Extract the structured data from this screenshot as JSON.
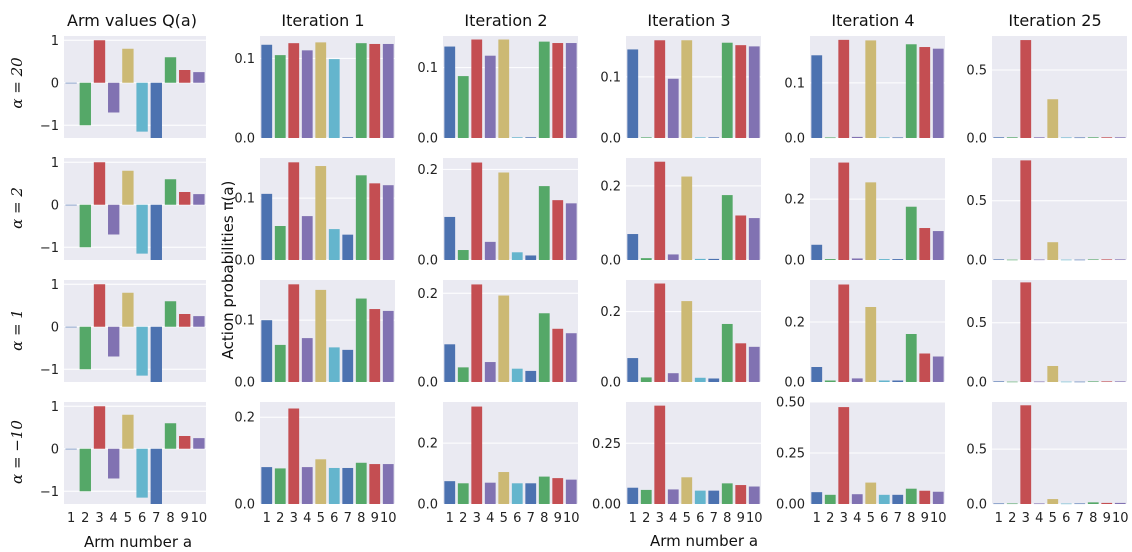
{
  "figure": {
    "col_titles": [
      "Arm values Q(a)",
      "Iteration 1",
      "Iteration 2",
      "Iteration 3",
      "Iteration 4",
      "Iteration 25"
    ],
    "row_labels": [
      "α = 20",
      "α = 2",
      "α = 1",
      "α = −10"
    ],
    "ylabel_probs": "Action probabilities π(a)",
    "xlabel_arm": "Arm number a",
    "arm_tick_labels": [
      "1",
      "2",
      "3",
      "4",
      "5",
      "6",
      "7",
      "8",
      "9",
      "10"
    ],
    "bar_colors": [
      "#4c72b0",
      "#55a868",
      "#c44e52",
      "#8172b2",
      "#ccb974",
      "#64b5cd",
      "#4c72b0",
      "#55a868",
      "#c44e52",
      "#8172b2"
    ]
  },
  "chart_data": [
    {
      "type": "bar",
      "title": "Arm values Q(a)",
      "row": "α = 20",
      "ylim": [
        -1.3,
        1.1
      ],
      "ticks": [
        -1,
        0,
        1
      ],
      "tick_labels": [
        "−1",
        "0",
        "1"
      ],
      "values": [
        0,
        -1.0,
        1.0,
        -0.7,
        0.8,
        -1.15,
        -1.3,
        0.6,
        0.3,
        0.25
      ]
    },
    {
      "type": "bar",
      "title": "Iteration 1",
      "row": "α = 20",
      "ylim": [
        0,
        0.128
      ],
      "ticks": [
        0,
        0.1
      ],
      "tick_labels": [
        "0.0",
        "0.1"
      ],
      "values": [
        0.117,
        0.104,
        0.119,
        0.11,
        0.12,
        0.099,
        0.001,
        0.119,
        0.118,
        0.118
      ]
    },
    {
      "type": "bar",
      "title": "Iteration 2",
      "row": "α = 20",
      "ylim": [
        0,
        0.145
      ],
      "ticks": [
        0,
        0.1
      ],
      "tick_labels": [
        "0.0",
        "0.1"
      ],
      "values": [
        0.13,
        0.088,
        0.14,
        0.117,
        0.14,
        0.001,
        0.001,
        0.137,
        0.135,
        0.135
      ]
    },
    {
      "type": "bar",
      "title": "Iteration 3",
      "row": "α = 20",
      "ylim": [
        0,
        0.167
      ],
      "ticks": [
        0,
        0.1
      ],
      "tick_labels": [
        "0.0",
        "0.1"
      ],
      "values": [
        0.145,
        0.001,
        0.16,
        0.097,
        0.16,
        0.001,
        0.001,
        0.156,
        0.152,
        0.15
      ]
    },
    {
      "type": "bar",
      "title": "Iteration 4",
      "row": "α = 20",
      "ylim": [
        0,
        0.185
      ],
      "ticks": [
        0,
        0.1
      ],
      "tick_labels": [
        "0.0",
        "0.1"
      ],
      "values": [
        0.15,
        0.001,
        0.178,
        0.002,
        0.177,
        0.001,
        0.001,
        0.17,
        0.165,
        0.162
      ]
    },
    {
      "type": "bar",
      "title": "Iteration 25",
      "row": "α = 20",
      "ylim": [
        0,
        0.75
      ],
      "ticks": [
        0,
        0.5
      ],
      "tick_labels": [
        "0.0",
        "0.5"
      ],
      "values": [
        0.005,
        0.005,
        0.72,
        0.005,
        0.285,
        0.004,
        0.004,
        0.005,
        0.005,
        0.005
      ]
    },
    {
      "type": "bar",
      "title": "Arm values Q(a)",
      "row": "α = 2",
      "ylim": [
        -1.3,
        1.1
      ],
      "ticks": [
        -1,
        0,
        1
      ],
      "tick_labels": [
        "−1",
        "0",
        "1"
      ],
      "values": [
        0,
        -1.0,
        1.0,
        -0.7,
        0.8,
        -1.15,
        -1.3,
        0.6,
        0.3,
        0.25
      ]
    },
    {
      "type": "bar",
      "title": "Iteration 1",
      "row": "α = 2",
      "ylim": [
        0,
        0.165
      ],
      "ticks": [
        0,
        0.1
      ],
      "tick_labels": [
        "0.0",
        "0.1"
      ],
      "values": [
        0.107,
        0.055,
        0.158,
        0.071,
        0.152,
        0.05,
        0.041,
        0.137,
        0.124,
        0.121
      ]
    },
    {
      "type": "bar",
      "title": "Iteration 2",
      "row": "α = 2",
      "ylim": [
        0,
        0.225
      ],
      "ticks": [
        0,
        0.2
      ],
      "tick_labels": [
        "0.0",
        "0.2"
      ],
      "values": [
        0.095,
        0.022,
        0.215,
        0.04,
        0.193,
        0.017,
        0.01,
        0.163,
        0.132,
        0.125
      ]
    },
    {
      "type": "bar",
      "title": "Iteration 3",
      "row": "α = 2",
      "ylim": [
        0,
        0.275
      ],
      "ticks": [
        0,
        0.2
      ],
      "tick_labels": [
        "0.0",
        "0.2"
      ],
      "values": [
        0.07,
        0.005,
        0.265,
        0.015,
        0.225,
        0.003,
        0.003,
        0.175,
        0.12,
        0.113
      ]
    },
    {
      "type": "bar",
      "title": "Iteration 4",
      "row": "α = 2",
      "ylim": [
        0,
        0.335
      ],
      "ticks": [
        0,
        0.2
      ],
      "tick_labels": [
        "0.0",
        "0.2"
      ],
      "values": [
        0.05,
        0.003,
        0.32,
        0.005,
        0.255,
        0.003,
        0.003,
        0.175,
        0.105,
        0.095
      ]
    },
    {
      "type": "bar",
      "title": "Iteration 25",
      "row": "α = 2",
      "ylim": [
        0,
        0.86
      ],
      "ticks": [
        0,
        0.5
      ],
      "tick_labels": [
        "0.0",
        "0.5"
      ],
      "values": [
        0.005,
        0.003,
        0.84,
        0.004,
        0.15,
        0.003,
        0.003,
        0.005,
        0.005,
        0.005
      ]
    },
    {
      "type": "bar",
      "title": "Arm values Q(a)",
      "row": "α = 1",
      "ylim": [
        -1.3,
        1.1
      ],
      "ticks": [
        -1,
        0,
        1
      ],
      "tick_labels": [
        "−1",
        "0",
        "1"
      ],
      "values": [
        0,
        -1.0,
        1.0,
        -0.7,
        0.8,
        -1.15,
        -1.3,
        0.6,
        0.3,
        0.25
      ]
    },
    {
      "type": "bar",
      "title": "Iteration 1",
      "row": "α = 1",
      "ylim": [
        0,
        0.165
      ],
      "ticks": [
        0,
        0.1
      ],
      "tick_labels": [
        "0.0",
        "0.1"
      ],
      "values": [
        0.1,
        0.06,
        0.158,
        0.071,
        0.149,
        0.056,
        0.052,
        0.135,
        0.118,
        0.115
      ]
    },
    {
      "type": "bar",
      "title": "Iteration 2",
      "row": "α = 1",
      "ylim": [
        0,
        0.23
      ],
      "ticks": [
        0,
        0.2
      ],
      "tick_labels": [
        "0.0",
        "0.2"
      ],
      "values": [
        0.085,
        0.033,
        0.22,
        0.045,
        0.195,
        0.03,
        0.025,
        0.155,
        0.12,
        0.11
      ]
    },
    {
      "type": "bar",
      "title": "Iteration 3",
      "row": "α = 1",
      "ylim": [
        0,
        0.29
      ],
      "ticks": [
        0,
        0.2
      ],
      "tick_labels": [
        "0.0",
        "0.2"
      ],
      "values": [
        0.068,
        0.013,
        0.28,
        0.025,
        0.23,
        0.012,
        0.01,
        0.165,
        0.11,
        0.1
      ]
    },
    {
      "type": "bar",
      "title": "Iteration 4",
      "row": "α = 1",
      "ylim": [
        0,
        0.34
      ],
      "ticks": [
        0,
        0.2
      ],
      "tick_labels": [
        "0.0",
        "0.2"
      ],
      "values": [
        0.05,
        0.005,
        0.325,
        0.012,
        0.25,
        0.005,
        0.005,
        0.16,
        0.095,
        0.085
      ]
    },
    {
      "type": "bar",
      "title": "Iteration 25",
      "row": "α = 1",
      "ylim": [
        0,
        0.86
      ],
      "ticks": [
        0,
        0.5
      ],
      "tick_labels": [
        "0.0",
        "0.5"
      ],
      "values": [
        0.005,
        0.003,
        0.84,
        0.004,
        0.135,
        0.003,
        0.003,
        0.005,
        0.005,
        0.005
      ]
    },
    {
      "type": "bar",
      "title": "Arm values Q(a)",
      "row": "α = −10",
      "ylim": [
        -1.3,
        1.1
      ],
      "ticks": [
        -1,
        0,
        1
      ],
      "tick_labels": [
        "−1",
        "0",
        "1"
      ],
      "values": [
        0,
        -1.0,
        1.0,
        -0.7,
        0.8,
        -1.15,
        -1.3,
        0.6,
        0.3,
        0.25
      ]
    },
    {
      "type": "bar",
      "title": "Iteration 1",
      "row": "α = −10",
      "ylim": [
        0,
        0.235
      ],
      "ticks": [
        0,
        0.2
      ],
      "tick_labels": [
        "0.0",
        "0.2"
      ],
      "values": [
        0.085,
        0.082,
        0.22,
        0.085,
        0.103,
        0.083,
        0.083,
        0.095,
        0.092,
        0.092
      ]
    },
    {
      "type": "bar",
      "title": "Iteration 2",
      "row": "α = −10",
      "ylim": [
        0,
        0.335
      ],
      "ticks": [
        0,
        0.2
      ],
      "tick_labels": [
        "0.0",
        "0.2"
      ],
      "values": [
        0.075,
        0.068,
        0.32,
        0.07,
        0.105,
        0.068,
        0.068,
        0.09,
        0.085,
        0.08
      ]
    },
    {
      "type": "bar",
      "title": "Iteration 3",
      "row": "α = −10",
      "ylim": [
        0,
        0.42
      ],
      "ticks": [
        0,
        0.25
      ],
      "tick_labels": [
        "0.00",
        "0.25"
      ],
      "values": [
        0.067,
        0.058,
        0.405,
        0.06,
        0.11,
        0.055,
        0.055,
        0.085,
        0.078,
        0.072
      ]
    },
    {
      "type": "bar",
      "title": "Iteration 4",
      "row": "α = −10",
      "ylim": [
        0,
        0.5
      ],
      "ticks": [
        0,
        0.25,
        0.5
      ],
      "tick_labels": [
        "0.00",
        "0.25",
        "0.50"
      ],
      "values": [
        0.058,
        0.045,
        0.475,
        0.048,
        0.105,
        0.045,
        0.045,
        0.075,
        0.065,
        0.06
      ]
    },
    {
      "type": "bar",
      "title": "Iteration 25",
      "row": "α = −10",
      "ylim": [
        0,
        0.93
      ],
      "ticks": [
        0,
        0.5
      ],
      "tick_labels": [
        "0.0",
        "0.5"
      ],
      "values": [
        0.005,
        0.005,
        0.9,
        0.005,
        0.045,
        0.004,
        0.005,
        0.015,
        0.01,
        0.01
      ]
    }
  ]
}
